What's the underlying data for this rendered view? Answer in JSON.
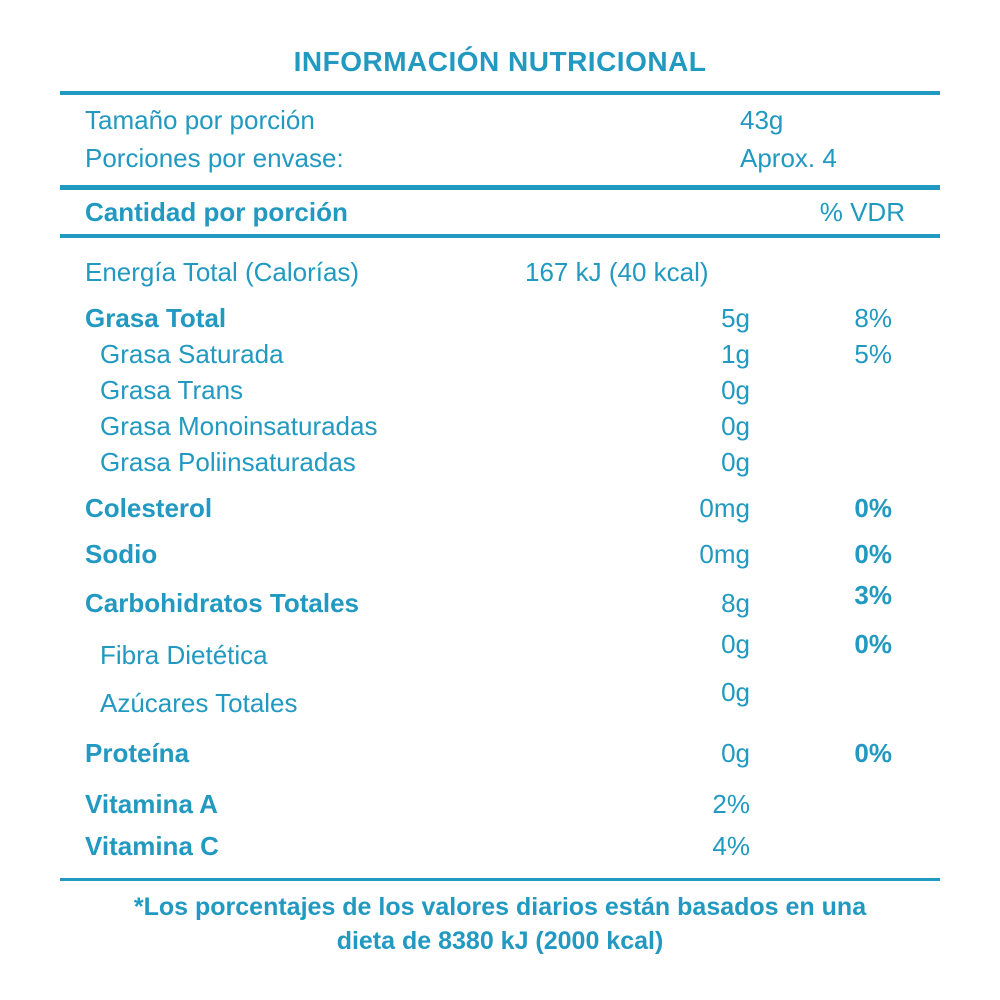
{
  "accent_color": "#2199C1",
  "title": "INFORMACIÓN NUTRICIONAL",
  "serving": {
    "size_label": "Tamaño por porción",
    "size_value": "43g",
    "per_container_label": "Porciones por envase:",
    "per_container_value": "Aprox. 4"
  },
  "header": {
    "amount_label": "Cantidad por porción",
    "dv_label": "% VDR"
  },
  "energy": {
    "label": "Energía Total (Calorías)",
    "value": "167 kJ (40 kcal)"
  },
  "nutrients": [
    {
      "label": "Grasa Total",
      "value": "5g",
      "dv": "8%"
    },
    {
      "label": "Grasa Saturada",
      "value": "1g",
      "dv": "5%"
    },
    {
      "label": "Grasa Trans",
      "value": "0g",
      "dv": ""
    },
    {
      "label": "Grasa Monoinsaturadas",
      "value": "0g",
      "dv": ""
    },
    {
      "label": "Grasa Poliinsaturadas",
      "value": "0g",
      "dv": ""
    },
    {
      "label": "Colesterol",
      "value": "0mg",
      "dv": "0%"
    },
    {
      "label": "Sodio",
      "value": "0mg",
      "dv": "0%"
    },
    {
      "label": "Carbohidratos Totales",
      "value": "8g",
      "dv": "3%"
    },
    {
      "label": "Fibra Dietética",
      "value": "0g",
      "dv": "0%"
    },
    {
      "label": "Azúcares Totales",
      "value": "0g",
      "dv": ""
    },
    {
      "label": "Proteína",
      "value": "0g",
      "dv": "0%"
    },
    {
      "label": "Vitamina A",
      "value": "2%",
      "dv": ""
    },
    {
      "label": "Vitamina C",
      "value": "4%",
      "dv": ""
    }
  ],
  "footnote": {
    "line1": "*Los porcentajes de los valores diarios están basados en una",
    "line2": "dieta de 8380 kJ (2000 kcal)"
  }
}
